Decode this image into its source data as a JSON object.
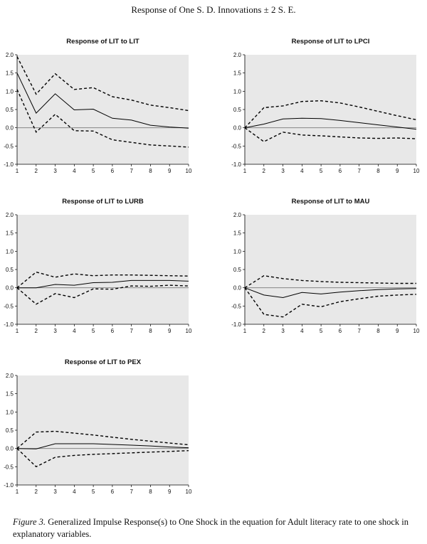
{
  "figure": {
    "title": "Response of One S. D. Innovations ± 2 S. E.",
    "caption_label": "Figure 3.",
    "caption_text": " Generalized Impulse Response(s) to One Shock in the equation for Adult literacy rate to one shock in explanatory variables."
  },
  "colors": {
    "plot_bg": "#e8e8e8",
    "line": "#000000",
    "zero_line": "#777777"
  },
  "chart_data": [
    {
      "type": "line",
      "title": "Response of LIT to LIT",
      "x": [
        1,
        2,
        3,
        4,
        5,
        6,
        7,
        8,
        9,
        10
      ],
      "ylim": [
        -1.0,
        2.0
      ],
      "yticks": [
        "2.0",
        "1.5",
        "1.0",
        "0.5",
        "0.0",
        "-0.5",
        "-1.0"
      ],
      "xticks": [
        "1",
        "2",
        "3",
        "4",
        "5",
        "6",
        "7",
        "8",
        "9",
        "10"
      ],
      "series": [
        {
          "style": "solid",
          "values": [
            1.5,
            0.4,
            0.93,
            0.49,
            0.51,
            0.26,
            0.21,
            0.07,
            0.02,
            -0.01
          ]
        },
        {
          "style": "dashed",
          "values": [
            1.95,
            0.92,
            1.48,
            1.05,
            1.1,
            0.85,
            0.76,
            0.62,
            0.55,
            0.47
          ]
        },
        {
          "style": "dashed",
          "values": [
            1.05,
            -0.12,
            0.37,
            -0.08,
            -0.09,
            -0.33,
            -0.4,
            -0.47,
            -0.5,
            -0.53
          ]
        }
      ]
    },
    {
      "type": "line",
      "title": "Response of LIT to LPCI",
      "x": [
        1,
        2,
        3,
        4,
        5,
        6,
        7,
        8,
        9,
        10
      ],
      "ylim": [
        -1.0,
        2.0
      ],
      "yticks": [
        "2.0",
        "1.5",
        "1.0",
        "0.5",
        "0.0",
        "-0.5",
        "-1.0"
      ],
      "xticks": [
        "1",
        "2",
        "3",
        "4",
        "5",
        "6",
        "7",
        "8",
        "9",
        "10"
      ],
      "series": [
        {
          "style": "solid",
          "values": [
            0.0,
            0.1,
            0.24,
            0.26,
            0.25,
            0.2,
            0.14,
            0.08,
            0.02,
            -0.04
          ]
        },
        {
          "style": "dashed",
          "values": [
            0.0,
            0.55,
            0.6,
            0.72,
            0.74,
            0.68,
            0.57,
            0.45,
            0.33,
            0.22
          ]
        },
        {
          "style": "dashed",
          "values": [
            0.0,
            -0.38,
            -0.12,
            -0.2,
            -0.22,
            -0.25,
            -0.28,
            -0.29,
            -0.28,
            -0.3
          ]
        }
      ]
    },
    {
      "type": "line",
      "title": "Response of LIT to LURB",
      "x": [
        1,
        2,
        3,
        4,
        5,
        6,
        7,
        8,
        9,
        10
      ],
      "ylim": [
        -1.0,
        2.0
      ],
      "yticks": [
        "2.0",
        "1.5",
        "1.0",
        "0.5",
        "0.0",
        "-0.5",
        "-1.0"
      ],
      "xticks": [
        "1",
        "2",
        "3",
        "4",
        "5",
        "6",
        "7",
        "8",
        "9",
        "10"
      ],
      "series": [
        {
          "style": "solid",
          "values": [
            0.0,
            0.0,
            0.09,
            0.07,
            0.14,
            0.15,
            0.2,
            0.2,
            0.2,
            0.18
          ]
        },
        {
          "style": "dashed",
          "values": [
            0.0,
            0.43,
            0.29,
            0.38,
            0.33,
            0.35,
            0.35,
            0.34,
            0.33,
            0.32
          ]
        },
        {
          "style": "dashed",
          "values": [
            0.0,
            -0.45,
            -0.16,
            -0.27,
            -0.03,
            -0.04,
            0.05,
            0.04,
            0.07,
            0.05
          ]
        }
      ]
    },
    {
      "type": "line",
      "title": "Response of LIT to MAU",
      "x": [
        1,
        2,
        3,
        4,
        5,
        6,
        7,
        8,
        9,
        10
      ],
      "ylim": [
        -1.0,
        2.0
      ],
      "yticks": [
        "2.0",
        "1.5",
        "1.0",
        "0.5",
        "0.0",
        "-0.5",
        "-1.0"
      ],
      "xticks": [
        "1",
        "2",
        "3",
        "4",
        "5",
        "6",
        "7",
        "8",
        "9",
        "10"
      ],
      "series": [
        {
          "style": "solid",
          "values": [
            0.0,
            -0.2,
            -0.27,
            -0.13,
            -0.17,
            -0.12,
            -0.08,
            -0.05,
            -0.03,
            -0.02
          ]
        },
        {
          "style": "dashed",
          "values": [
            0.0,
            0.33,
            0.25,
            0.2,
            0.17,
            0.15,
            0.14,
            0.13,
            0.12,
            0.12
          ]
        },
        {
          "style": "dashed",
          "values": [
            0.0,
            -0.73,
            -0.8,
            -0.45,
            -0.52,
            -0.38,
            -0.3,
            -0.23,
            -0.2,
            -0.18
          ]
        }
      ]
    },
    {
      "type": "line",
      "title": "Response of LIT to PEX",
      "x": [
        1,
        2,
        3,
        4,
        5,
        6,
        7,
        8,
        9,
        10
      ],
      "ylim": [
        -1.0,
        2.0
      ],
      "yticks": [
        "2.0",
        "1.5",
        "1.0",
        "0.5",
        "0.0",
        "-0.5",
        "-1.0"
      ],
      "xticks": [
        "1",
        "2",
        "3",
        "4",
        "5",
        "6",
        "7",
        "8",
        "9",
        "10"
      ],
      "series": [
        {
          "style": "solid",
          "values": [
            0.0,
            -0.01,
            0.13,
            0.13,
            0.13,
            0.11,
            0.09,
            0.07,
            0.04,
            0.02
          ]
        },
        {
          "style": "dashed",
          "values": [
            0.0,
            0.45,
            0.47,
            0.42,
            0.37,
            0.31,
            0.25,
            0.2,
            0.15,
            0.1
          ]
        },
        {
          "style": "dashed",
          "values": [
            0.0,
            -0.5,
            -0.24,
            -0.19,
            -0.16,
            -0.14,
            -0.12,
            -0.1,
            -0.08,
            -0.06
          ]
        }
      ]
    }
  ]
}
